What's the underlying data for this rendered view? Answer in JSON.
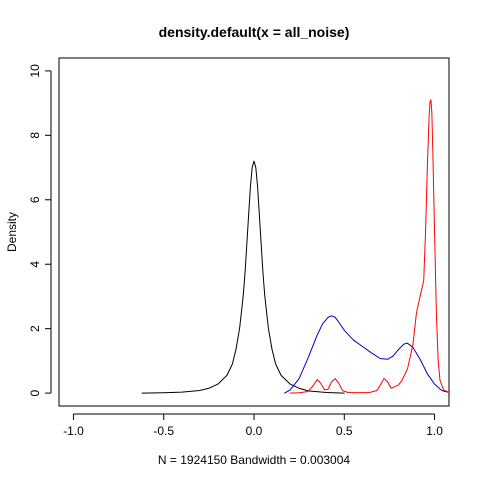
{
  "chart_data": {
    "type": "line",
    "title": "density.default(x = all_noise)",
    "xlabel": "N = 1924150   Bandwidth = 0.003004",
    "ylabel": "Density",
    "xlim": [
      -1.08,
      1.08
    ],
    "ylim": [
      -0.4,
      10.4
    ],
    "x_ticks": [
      -1.0,
      -0.5,
      0.0,
      0.5,
      1.0
    ],
    "x_tick_labels": [
      "-1.0",
      "-0.5",
      "0.0",
      "0.5",
      "1.0"
    ],
    "y_ticks": [
      0,
      2,
      4,
      6,
      8,
      10
    ],
    "y_tick_labels": [
      "0",
      "2",
      "4",
      "6",
      "8",
      "10"
    ],
    "grid": false,
    "series": [
      {
        "color": "#000000",
        "x": [
          -0.62,
          -0.5,
          -0.4,
          -0.3,
          -0.25,
          -0.2,
          -0.15,
          -0.12,
          -0.1,
          -0.08,
          -0.06,
          -0.05,
          -0.04,
          -0.03,
          -0.02,
          -0.01,
          0.0,
          0.01,
          0.02,
          0.03,
          0.04,
          0.05,
          0.06,
          0.08,
          0.1,
          0.12,
          0.15,
          0.2,
          0.25,
          0.3,
          0.4,
          0.5
        ],
        "y": [
          0.0,
          0.01,
          0.03,
          0.08,
          0.15,
          0.28,
          0.55,
          0.9,
          1.35,
          2.0,
          3.0,
          3.7,
          4.6,
          5.5,
          6.4,
          7.0,
          7.2,
          7.0,
          6.4,
          5.5,
          4.6,
          3.7,
          3.0,
          2.0,
          1.35,
          0.9,
          0.55,
          0.28,
          0.15,
          0.07,
          0.02,
          0.0
        ]
      },
      {
        "color": "#0000cc",
        "x": [
          0.17,
          0.2,
          0.25,
          0.3,
          0.35,
          0.38,
          0.41,
          0.43,
          0.45,
          0.47,
          0.5,
          0.55,
          0.6,
          0.65,
          0.7,
          0.74,
          0.77,
          0.8,
          0.83,
          0.85,
          0.88,
          0.92,
          0.96,
          1.0,
          1.04,
          1.08
        ],
        "y": [
          0.0,
          0.1,
          0.45,
          1.1,
          1.8,
          2.15,
          2.35,
          2.4,
          2.35,
          2.2,
          1.95,
          1.65,
          1.45,
          1.25,
          1.07,
          1.05,
          1.15,
          1.35,
          1.52,
          1.55,
          1.42,
          1.05,
          0.6,
          0.28,
          0.08,
          0.02
        ]
      },
      {
        "color": "#ff0000",
        "x": [
          0.2,
          0.25,
          0.3,
          0.33,
          0.35,
          0.37,
          0.39,
          0.41,
          0.43,
          0.45,
          0.47,
          0.49,
          0.52,
          0.58,
          0.64,
          0.68,
          0.7,
          0.72,
          0.74,
          0.76,
          0.78,
          0.8,
          0.82,
          0.85,
          0.88,
          0.9,
          0.92,
          0.94,
          0.95,
          0.96,
          0.97,
          0.975,
          0.98,
          0.985,
          0.99,
          1.0,
          1.01,
          1.02,
          1.03,
          1.05,
          1.08
        ],
        "y": [
          0.0,
          0.01,
          0.05,
          0.25,
          0.42,
          0.3,
          0.1,
          0.12,
          0.35,
          0.45,
          0.3,
          0.08,
          0.02,
          0.01,
          0.02,
          0.08,
          0.25,
          0.45,
          0.35,
          0.15,
          0.2,
          0.25,
          0.4,
          0.75,
          1.5,
          2.5,
          3.0,
          3.5,
          5.0,
          7.0,
          8.6,
          9.05,
          9.1,
          8.7,
          7.6,
          5.0,
          2.5,
          1.0,
          0.4,
          0.1,
          0.02
        ]
      }
    ]
  }
}
